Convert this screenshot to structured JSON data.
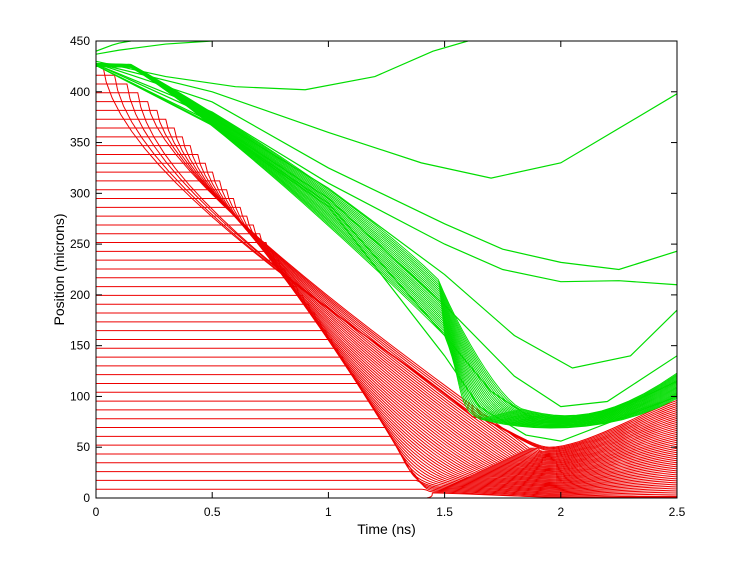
{
  "chart_data": {
    "type": "line",
    "title": "",
    "xlabel": "Time (ns)",
    "ylabel": "Position (microns)",
    "xlim": [
      0,
      2.5
    ],
    "ylim": [
      0,
      450
    ],
    "xticks": [
      "0",
      "0.5",
      "1",
      "1.5",
      "2",
      "2.5"
    ],
    "yticks": [
      "0",
      "50",
      "100",
      "150",
      "200",
      "250",
      "300",
      "350",
      "400",
      "450"
    ],
    "grid": false,
    "legend": "none",
    "colors": {
      "inner_zones": "#ee0000",
      "outer_zones": "#00dd00",
      "axes": "#000000"
    },
    "series_groups": [
      {
        "role": "inner-zone-trajectories",
        "color": "#ee0000",
        "count": 50,
        "initial_positions": [
          0,
          425
        ],
        "implosion_arrival_time": 1.42,
        "stagnation": {
          "t": 1.95,
          "position": 50
        },
        "end_position_at_2_5": [
          0,
          96
        ]
      },
      {
        "role": "outer-zone-trajectories",
        "color": "#00dd00",
        "sample_trajectories": [
          {
            "x": [
              0,
              0.07,
              0.1,
              0.15
            ],
            "y": [
              440,
              446,
              448,
              450
            ]
          },
          {
            "x": [
              0,
              0.1,
              0.2,
              0.3,
              0.5
            ],
            "y": [
              437,
              441,
              444,
              447,
              450
            ]
          },
          {
            "x": [
              0,
              0.3,
              0.6,
              0.9,
              1.2,
              1.45,
              1.6
            ],
            "y": [
              430,
              415,
              405,
              402,
              415,
              440,
              450
            ]
          },
          {
            "x": [
              0,
              0.5,
              1,
              1.4,
              1.7,
              2,
              2.5
            ],
            "y": [
              428,
              400,
              360,
              330,
              315,
              330,
              398
            ]
          },
          {
            "x": [
              0,
              0.5,
              1,
              1.5,
              1.75,
              2,
              2.25,
              2.5
            ],
            "y": [
              428,
              390,
              325,
              270,
              245,
              232,
              225,
              243
            ]
          },
          {
            "x": [
              0,
              0.5,
              1,
              1.5,
              1.75,
              2,
              2.25,
              2.5
            ],
            "y": [
              427,
              380,
              310,
              250,
              225,
              213,
              214,
              210
            ]
          },
          {
            "x": [
              0,
              0.5,
              1,
              1.5,
              1.8,
              2.05,
              2.3,
              2.5
            ],
            "y": [
              427,
              375,
              305,
              220,
              160,
              128,
              140,
              185
            ]
          },
          {
            "x": [
              0,
              0.5,
              1,
              1.5,
              1.8,
              2,
              2.2,
              2.5
            ],
            "y": [
              426,
              370,
              295,
              190,
              120,
              90,
              95,
              140
            ]
          },
          {
            "x": [
              0,
              0.5,
              1,
              1.5,
              1.7,
              1.9,
              2.1,
              2.5
            ],
            "y": [
              426,
              368,
              290,
              160,
              105,
              75,
              72,
              115
            ]
          },
          {
            "x": [
              0,
              0.5,
              1,
              1.5,
              1.65,
              1.85,
              2,
              2.5
            ],
            "y": [
              426,
              367,
              287,
              140,
              90,
              62,
              56,
              100
            ]
          }
        ]
      }
    ]
  }
}
